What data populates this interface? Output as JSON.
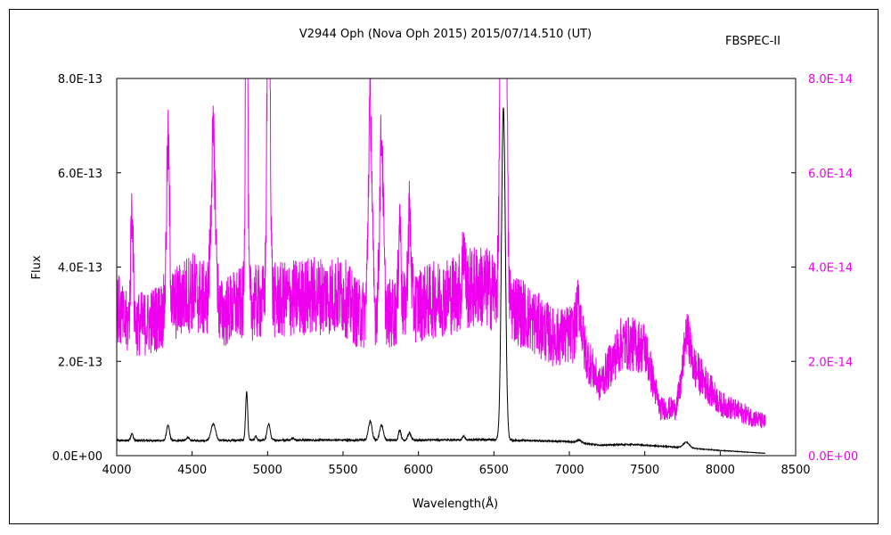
{
  "chart_data": {
    "type": "line",
    "title": "V2944 Oph (Nova Oph 2015)    2015/07/14.510 (UT)",
    "instrument": "FBSPEC-II",
    "xlabel": "Wavelength(Å)",
    "ylabel": "Flux",
    "xlim": [
      4000,
      8500
    ],
    "ylim_left": [
      0,
      8e-13
    ],
    "ylim_right": [
      0,
      8e-14
    ],
    "x_ticks": [
      "4000",
      "4500",
      "5000",
      "5500",
      "6000",
      "6500",
      "7000",
      "7500",
      "8000",
      "8500"
    ],
    "y_ticks_left": [
      "0.0E+00",
      "2.0E-13",
      "4.0E-13",
      "6.0E-13",
      "8.0E-13"
    ],
    "y_ticks_right": [
      "0.0E+00",
      "2.0E-14",
      "4.0E-14",
      "6.0E-14",
      "8.0E-14"
    ],
    "grid": false,
    "colors": {
      "series_left": "#000000",
      "series_right": "#ee00ee",
      "axis_right": "#ee00ee"
    },
    "series": [
      {
        "axis": "left",
        "color": "#000000",
        "x_start": 4000,
        "x_end": 8300,
        "continuum": [
          [
            4000,
            3.2e-14
          ],
          [
            4200,
            3.2e-14
          ],
          [
            4500,
            3.2e-14
          ],
          [
            5000,
            3.3e-14
          ],
          [
            5500,
            3.3e-14
          ],
          [
            6000,
            3.3e-14
          ],
          [
            6500,
            3.4e-14
          ],
          [
            6700,
            3.2e-14
          ],
          [
            7000,
            3e-14
          ],
          [
            7200,
            2.2e-14
          ],
          [
            7400,
            2.4e-14
          ],
          [
            7600,
            2e-14
          ],
          [
            7800,
            1.6e-14
          ],
          [
            8000,
            1.1e-14
          ],
          [
            8300,
            5e-15
          ]
        ],
        "lines": [
          {
            "w": 4101,
            "a": 1.5e-14,
            "s": 8
          },
          {
            "w": 4340,
            "a": 3.2e-14,
            "s": 10
          },
          {
            "w": 4471,
            "a": 7e-15,
            "s": 8
          },
          {
            "w": 4640,
            "a": 3.5e-14,
            "s": 15
          },
          {
            "w": 4861,
            "a": 1.02e-13,
            "s": 7
          },
          {
            "w": 4922,
            "a": 8e-15,
            "s": 6
          },
          {
            "w": 5007,
            "a": 3.5e-14,
            "s": 10
          },
          {
            "w": 5169,
            "a": 5e-15,
            "s": 8
          },
          {
            "w": 5680,
            "a": 4e-14,
            "s": 12
          },
          {
            "w": 5755,
            "a": 3.2e-14,
            "s": 12
          },
          {
            "w": 5876,
            "a": 2.2e-14,
            "s": 8
          },
          {
            "w": 5940,
            "a": 1.5e-14,
            "s": 10
          },
          {
            "w": 6300,
            "a": 8e-15,
            "s": 8
          },
          {
            "w": 6563,
            "a": 7.05e-13,
            "s": 13
          },
          {
            "w": 7065,
            "a": 5e-15,
            "s": 15
          },
          {
            "w": 7775,
            "a": 1.2e-14,
            "s": 20
          }
        ]
      },
      {
        "axis": "right",
        "color": "#ee00ee",
        "x_start": 4000,
        "x_end": 8300,
        "continuum": [
          [
            4000,
            3.2e-14
          ],
          [
            4050,
            2.8e-14
          ],
          [
            4200,
            2.8e-14
          ],
          [
            4300,
            3e-14
          ],
          [
            4500,
            3.5e-14
          ],
          [
            4700,
            3e-14
          ],
          [
            4800,
            3.2e-14
          ],
          [
            5100,
            3.3e-14
          ],
          [
            5300,
            3.4e-14
          ],
          [
            5500,
            3.4e-14
          ],
          [
            5600,
            3e-14
          ],
          [
            5800,
            3e-14
          ],
          [
            6000,
            3.2e-14
          ],
          [
            6200,
            3.4e-14
          ],
          [
            6400,
            3.6e-14
          ],
          [
            6500,
            3.5e-14
          ],
          [
            6700,
            3e-14
          ],
          [
            6900,
            2.5e-14
          ],
          [
            7050,
            2.6e-14
          ],
          [
            7200,
            1.5e-14
          ],
          [
            7350,
            2.4e-14
          ],
          [
            7500,
            2.3e-14
          ],
          [
            7600,
            1e-14
          ],
          [
            7700,
            1e-14
          ],
          [
            7800,
            2e-14
          ],
          [
            8000,
            1.1e-14
          ],
          [
            8300,
            7e-15
          ]
        ],
        "lines": [
          {
            "w": 4101,
            "a": 2.5e-14,
            "s": 8
          },
          {
            "w": 4340,
            "a": 3.5e-14,
            "s": 10
          },
          {
            "w": 4640,
            "a": 3.5e-14,
            "s": 15
          },
          {
            "w": 4861,
            "a": 1e-13,
            "s": 7
          },
          {
            "w": 5007,
            "a": 8e-14,
            "s": 10
          },
          {
            "w": 5680,
            "a": 4.5e-14,
            "s": 12
          },
          {
            "w": 5755,
            "a": 3.8e-14,
            "s": 12
          },
          {
            "w": 5876,
            "a": 2e-14,
            "s": 8
          },
          {
            "w": 5940,
            "a": 2e-14,
            "s": 10
          },
          {
            "w": 6300,
            "a": 1e-14,
            "s": 8
          },
          {
            "w": 6563,
            "a": 3e-13,
            "s": 13
          },
          {
            "w": 7065,
            "a": 7e-15,
            "s": 15
          },
          {
            "w": 7775,
            "a": 8e-15,
            "s": 20
          }
        ]
      }
    ]
  }
}
